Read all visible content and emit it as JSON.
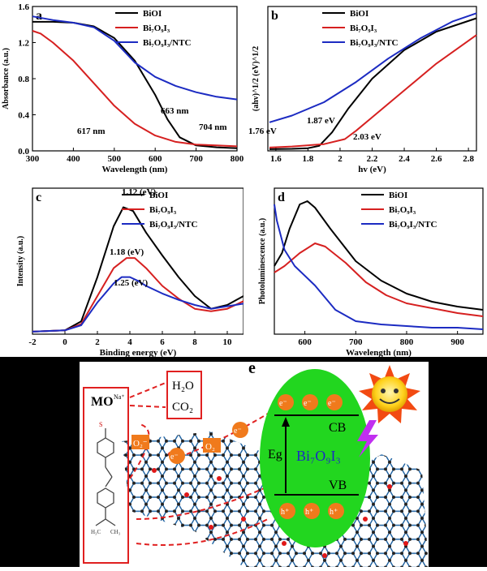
{
  "colors": {
    "black": "#000000",
    "red": "#d62020",
    "blue": "#1c2bc2",
    "green": "#22d61f",
    "orange": "#f07a1c",
    "bg_dark": "#000000"
  },
  "charts": [
    {
      "id": "a",
      "letter": "a",
      "type": "line",
      "xlabel": "Wavelength (nm)",
      "ylabel": "Absorbance (a.u.)",
      "xlim": [
        300,
        800
      ],
      "ylim": [
        0,
        1.6
      ],
      "xticks": [
        300,
        400,
        500,
        600,
        700,
        800
      ],
      "yticks": [
        0.0,
        0.4,
        0.8,
        1.2,
        1.6
      ],
      "ytick_labels": [
        "0.0",
        "0.4",
        "0.8",
        "1.2",
        "1.6"
      ],
      "legend": [
        "BiOI",
        "Bi₇O₉I₃",
        "Bi₇O₉I₃/NTC"
      ],
      "annotations": [
        "617 nm",
        "663 nm",
        "704 nm"
      ]
    },
    {
      "id": "b",
      "letter": "b",
      "type": "line",
      "xlabel": "hv (eV)",
      "ylabel": "(ahv)^1/2 (eV)^1/2",
      "xlim": [
        1.55,
        2.85
      ],
      "xticks": [
        1.6,
        1.8,
        2.0,
        2.2,
        2.4,
        2.6,
        2.8
      ],
      "legend": [
        "BiOI",
        "Bi₇O₉I₃",
        "Bi₇O₉I₃/NTC"
      ],
      "annotations": [
        "1.76 eV",
        "1.87 eV",
        "2.03 eV"
      ]
    },
    {
      "id": "c",
      "letter": "c",
      "type": "line",
      "xlabel": "Binding energy (eV)",
      "ylabel": "Intensity (a.u.)",
      "xlim": [
        -2,
        11
      ],
      "xticks": [
        -2,
        0,
        2,
        4,
        6,
        8,
        10
      ],
      "legend": [
        "BiOI",
        "Bi₇O₉I₃",
        "Bi₇O₉I₃/NTC"
      ],
      "annotations": [
        "1.12 (eV)",
        "1.18 (eV)",
        "1.25 (eV)"
      ]
    },
    {
      "id": "d",
      "letter": "d",
      "type": "line",
      "xlabel": "Wavelength (nm)",
      "ylabel": "Photoluminescence (a.u.)",
      "xlim": [
        540,
        950
      ],
      "xticks": [
        600,
        700,
        800,
        900
      ],
      "legend": [
        "BiOI",
        "Bi₇O₉I₃",
        "Bi₇O₉I₃/NTC"
      ]
    }
  ],
  "chart_data": [
    {
      "type": "line",
      "panel": "a",
      "xlabel": "Wavelength (nm)",
      "ylabel": "Absorbance (a.u.)",
      "xlim": [
        300,
        800
      ],
      "ylim": [
        0,
        1.6
      ],
      "series": [
        {
          "name": "BiOI",
          "x": [
            300,
            350,
            400,
            450,
            500,
            550,
            600,
            630,
            660,
            700,
            750,
            800
          ],
          "y": [
            1.43,
            1.43,
            1.42,
            1.38,
            1.25,
            1.0,
            0.62,
            0.35,
            0.15,
            0.06,
            0.04,
            0.03
          ]
        },
        {
          "name": "Bi₇O₉I₃",
          "x": [
            300,
            320,
            350,
            400,
            450,
            500,
            550,
            600,
            650,
            700,
            750,
            800
          ],
          "y": [
            1.33,
            1.3,
            1.2,
            1.0,
            0.75,
            0.5,
            0.3,
            0.17,
            0.1,
            0.07,
            0.06,
            0.05
          ]
        },
        {
          "name": "Bi₇O₉I₃/NTC",
          "x": [
            300,
            350,
            400,
            450,
            500,
            550,
            600,
            650,
            700,
            750,
            800
          ],
          "y": [
            1.49,
            1.45,
            1.42,
            1.37,
            1.22,
            0.98,
            0.82,
            0.72,
            0.65,
            0.6,
            0.57
          ]
        }
      ]
    },
    {
      "type": "line",
      "panel": "b",
      "xlabel": "hv (eV)",
      "ylabel": "(ahv)^1/2 (eV)^1/2",
      "xlim": [
        1.55,
        2.85
      ],
      "series": [
        {
          "name": "BiOI",
          "x": [
            1.56,
            1.7,
            1.8,
            1.87,
            1.95,
            2.05,
            2.2,
            2.4,
            2.6,
            2.85
          ],
          "y": [
            0.05,
            0.06,
            0.08,
            0.15,
            0.55,
            1.25,
            2.15,
            3.0,
            3.55,
            3.95
          ]
        },
        {
          "name": "Bi₇O₉I₃",
          "x": [
            1.56,
            1.7,
            1.9,
            2.03,
            2.1,
            2.2,
            2.4,
            2.6,
            2.85
          ],
          "y": [
            0.1,
            0.13,
            0.2,
            0.35,
            0.6,
            1.0,
            1.8,
            2.6,
            3.45
          ]
        },
        {
          "name": "Bi₇O₉I₃/NTC",
          "x": [
            1.56,
            1.7,
            1.9,
            2.1,
            2.3,
            2.5,
            2.7,
            2.85
          ],
          "y": [
            0.85,
            1.05,
            1.45,
            2.05,
            2.75,
            3.35,
            3.85,
            4.1
          ]
        }
      ]
    },
    {
      "type": "line",
      "panel": "c",
      "xlabel": "Binding energy (eV)",
      "ylabel": "Intensity (a.u.)",
      "xlim": [
        -2,
        11
      ],
      "series": [
        {
          "name": "BiOI",
          "x": [
            -2,
            0,
            1,
            2,
            3,
            3.6,
            4.2,
            5,
            6,
            7,
            8,
            9,
            10,
            11
          ],
          "y": [
            0.02,
            0.03,
            0.1,
            0.45,
            0.85,
            1.0,
            0.97,
            0.8,
            0.62,
            0.45,
            0.3,
            0.2,
            0.23,
            0.3
          ]
        },
        {
          "name": "Bi₇O₉I₃",
          "x": [
            -2,
            0,
            1,
            2,
            3,
            3.8,
            4.3,
            5,
            6,
            7,
            8,
            9,
            10,
            11
          ],
          "y": [
            0.02,
            0.03,
            0.08,
            0.3,
            0.52,
            0.6,
            0.6,
            0.52,
            0.38,
            0.28,
            0.2,
            0.18,
            0.2,
            0.26
          ]
        },
        {
          "name": "Bi₇O₉I₃/NTC",
          "x": [
            -2,
            0,
            1,
            2,
            3,
            3.5,
            4,
            4.5,
            5,
            6,
            7,
            8,
            9,
            10,
            11
          ],
          "y": [
            0.02,
            0.03,
            0.07,
            0.25,
            0.4,
            0.45,
            0.45,
            0.42,
            0.38,
            0.32,
            0.27,
            0.23,
            0.2,
            0.22,
            0.24
          ]
        }
      ]
    },
    {
      "type": "line",
      "panel": "d",
      "xlabel": "Wavelength (nm)",
      "ylabel": "Photoluminescence (a.u.)",
      "xlim": [
        540,
        950
      ],
      "series": [
        {
          "name": "BiOI",
          "x": [
            540,
            555,
            570,
            590,
            605,
            620,
            650,
            700,
            750,
            800,
            850,
            900,
            950
          ],
          "y": [
            0.42,
            0.5,
            0.65,
            0.8,
            0.82,
            0.78,
            0.65,
            0.45,
            0.33,
            0.25,
            0.2,
            0.17,
            0.15
          ]
        },
        {
          "name": "Bi₇O₉I₃",
          "x": [
            540,
            560,
            590,
            620,
            640,
            680,
            720,
            760,
            800,
            850,
            900,
            950
          ],
          "y": [
            0.38,
            0.42,
            0.5,
            0.56,
            0.54,
            0.44,
            0.32,
            0.24,
            0.19,
            0.16,
            0.13,
            0.11
          ]
        },
        {
          "name": "Bi₇O₉I₃/NTC",
          "x": [
            540,
            545,
            560,
            580,
            620,
            660,
            700,
            750,
            800,
            850,
            900,
            950
          ],
          "y": [
            0.8,
            0.7,
            0.52,
            0.42,
            0.3,
            0.15,
            0.08,
            0.06,
            0.05,
            0.04,
            0.04,
            0.03
          ]
        }
      ]
    }
  ],
  "schematic": {
    "letter": "e",
    "mo_label": "MO",
    "na_label": "Na⁺",
    "product_h2o": "H₂O",
    "product_co2": "CO₂",
    "o2_radical_1": "O₂⁻",
    "o2_radical_2": "O₂",
    "electron_label": "e⁻",
    "cb_label": "CB",
    "vb_label": "VB",
    "eg_label": "Eg",
    "catalyst_label": "Bi₇O₉I₃",
    "hole_label": "h⁺"
  }
}
